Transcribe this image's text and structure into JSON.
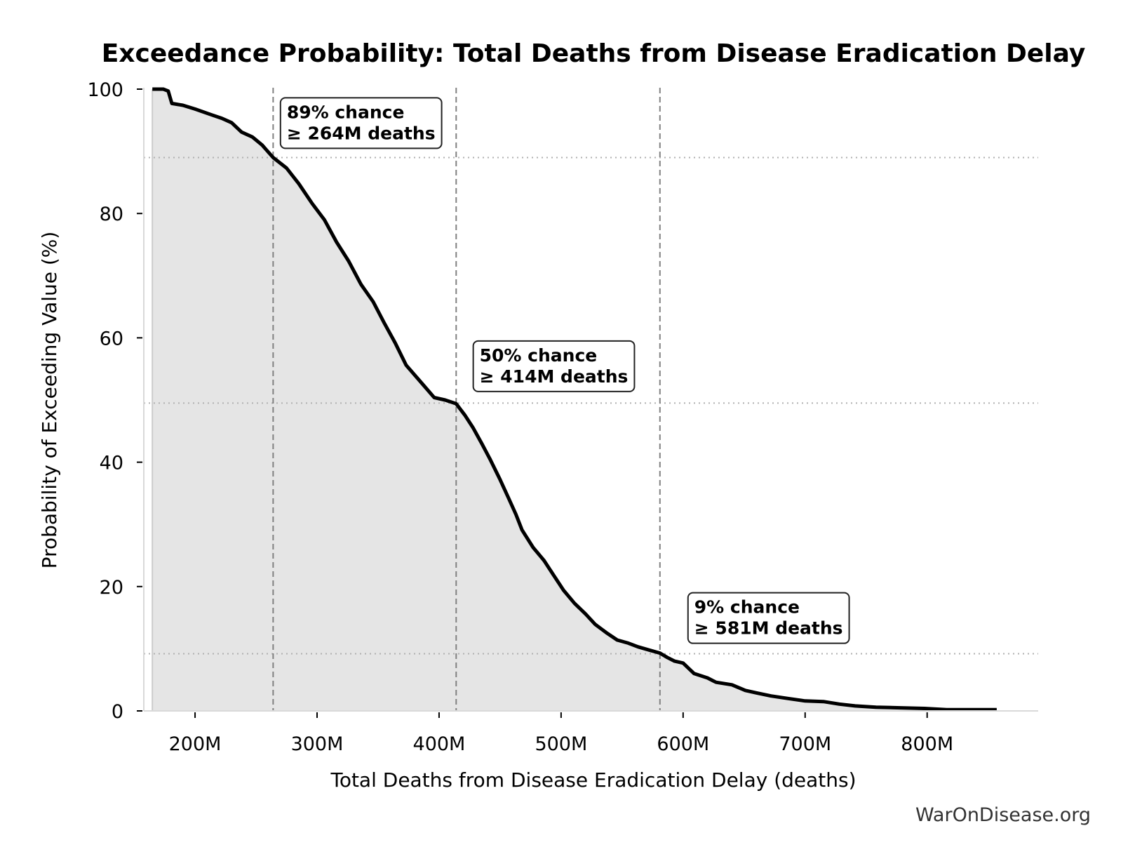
{
  "chart_data": {
    "type": "area",
    "title": "Exceedance Probability: Total Deaths from Disease Eradication Delay",
    "xlabel": "Total Deaths from Disease Eradication Delay (deaths)",
    "ylabel": "Probability of Exceeding Value (%)",
    "xlim": [
      158,
      891
    ],
    "ylim": [
      0,
      100
    ],
    "x_unit": "millions of deaths",
    "x_ticks": [
      {
        "value": 200,
        "label": "200M"
      },
      {
        "value": 300,
        "label": "300M"
      },
      {
        "value": 400,
        "label": "400M"
      },
      {
        "value": 500,
        "label": "500M"
      },
      {
        "value": 600,
        "label": "600M"
      },
      {
        "value": 700,
        "label": "700M"
      },
      {
        "value": 800,
        "label": "800M"
      }
    ],
    "y_ticks": [
      {
        "value": 0,
        "label": "0"
      },
      {
        "value": 20,
        "label": "20"
      },
      {
        "value": 40,
        "label": "40"
      },
      {
        "value": 60,
        "label": "60"
      },
      {
        "value": 80,
        "label": "80"
      },
      {
        "value": 100,
        "label": "100"
      }
    ],
    "grid": false,
    "series": [
      {
        "name": "Exceedance probability",
        "color": "#000000",
        "fill_color": "#e5e5e5",
        "x": [
          165,
          174,
          178,
          181,
          190,
          200,
          213,
          222,
          230,
          238,
          247,
          255,
          264,
          275,
          285,
          296,
          306,
          316,
          326,
          336,
          346,
          355,
          364,
          373,
          385,
          396,
          405,
          414,
          421,
          428,
          435,
          442,
          450,
          457,
          463,
          468,
          477,
          486,
          494,
          502,
          511,
          520,
          528,
          537,
          546,
          555,
          563,
          572,
          581,
          587,
          593,
          600,
          609,
          620,
          627,
          640,
          651,
          660,
          672,
          686,
          700,
          715,
          728,
          741,
          758,
          778,
          798,
          816,
          835,
          857
        ],
        "values": [
          100,
          100,
          99.7,
          97.7,
          97.4,
          96.8,
          95.9,
          95.3,
          94.6,
          93.1,
          92.3,
          91.0,
          89.0,
          87.3,
          84.8,
          81.6,
          79.0,
          75.4,
          72.3,
          68.6,
          65.8,
          62.4,
          59.2,
          55.6,
          52.9,
          50.4,
          50.0,
          49.4,
          47.6,
          45.5,
          43.0,
          40.4,
          37.2,
          34.2,
          31.6,
          29.1,
          26.3,
          24.2,
          21.8,
          19.4,
          17.3,
          15.6,
          13.9,
          12.6,
          11.4,
          10.9,
          10.3,
          9.8,
          9.3,
          8.6,
          8.0,
          7.7,
          6.0,
          5.3,
          4.6,
          4.2,
          3.3,
          2.9,
          2.4,
          2.0,
          1.6,
          1.5,
          1.1,
          0.8,
          0.6,
          0.5,
          0.4,
          0.2,
          0.2,
          0.2
        ]
      }
    ],
    "reference_lines": [
      {
        "x": 264,
        "y": 89,
        "label_line1": "89% chance",
        "label_line2": "≥ 264M deaths",
        "label_x": 270,
        "label_y": 98.6
      },
      {
        "x": 414,
        "y": 49.5,
        "label_line1": "50% chance",
        "label_line2": "≥ 414M deaths",
        "label_x": 428,
        "label_y": 59.5
      },
      {
        "x": 581,
        "y": 9.2,
        "label_line1": "9% chance",
        "label_line2": "≥ 581M deaths",
        "label_x": 604,
        "label_y": 19.0
      }
    ],
    "annotations": [
      {
        "text": "89% chance\n≥ 264M deaths"
      },
      {
        "text": "50% chance\n≥ 414M deaths"
      },
      {
        "text": "9% chance\n≥ 581M deaths"
      }
    ],
    "colors": {
      "line": "#000000",
      "fill": "#e5e5e5",
      "vertical_reference": "#808080",
      "horizontal_reference": "#b0b0b0",
      "spine": "#d9d9d9"
    }
  },
  "watermark": "WarOnDisease.org"
}
